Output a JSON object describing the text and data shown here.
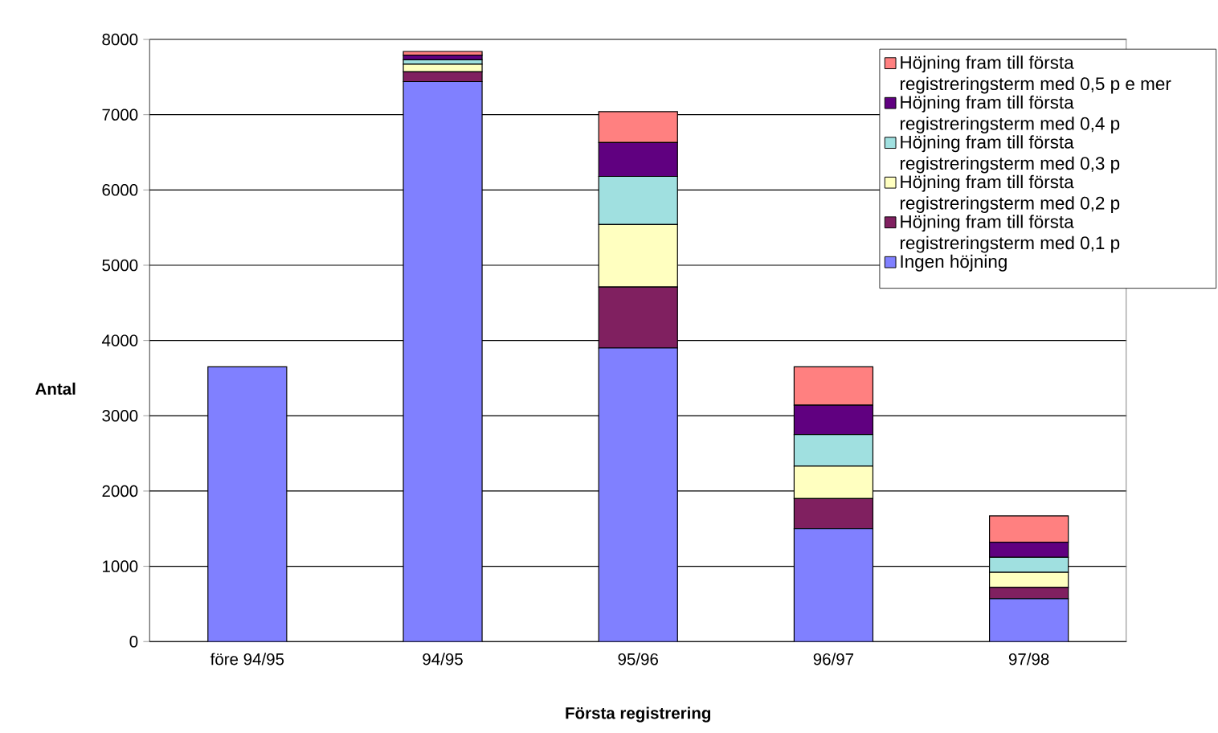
{
  "chart_data": {
    "type": "bar",
    "stacked": true,
    "xlabel": "Första registrering",
    "ylabel": "Antal",
    "categories": [
      "före 94/95",
      "94/95",
      "95/96",
      "96/97",
      "97/98"
    ],
    "series": [
      {
        "name": "Ingen höjning",
        "color": "#8080ff",
        "values": [
          3650,
          7440,
          3900,
          1500,
          570
        ]
      },
      {
        "name": "Höjning fram till första registreringsterm med 0,1 p",
        "color": "#802060",
        "values": [
          null,
          130,
          810,
          400,
          150
        ]
      },
      {
        "name": "Höjning fram till första registreringsterm med 0,2 p",
        "color": "#ffffc0",
        "values": [
          null,
          100,
          830,
          430,
          200
        ]
      },
      {
        "name": "Höjning fram till första registreringsterm med 0,3 p",
        "color": "#a0e0e0",
        "values": [
          null,
          60,
          640,
          420,
          200
        ]
      },
      {
        "name": "Höjning fram till första registreringsterm med 0,4 p",
        "color": "#600080",
        "values": [
          null,
          60,
          450,
          390,
          200
        ]
      },
      {
        "name": "Höjning fram till första registreringsterm med 0,5 p e mer",
        "color": "#ff8080",
        "values": [
          null,
          50,
          410,
          510,
          350
        ]
      }
    ],
    "ylim": [
      0,
      8000
    ],
    "yticks": [
      0,
      1000,
      2000,
      3000,
      4000,
      5000,
      6000,
      7000,
      8000
    ],
    "grid": "y",
    "legend": "right"
  }
}
